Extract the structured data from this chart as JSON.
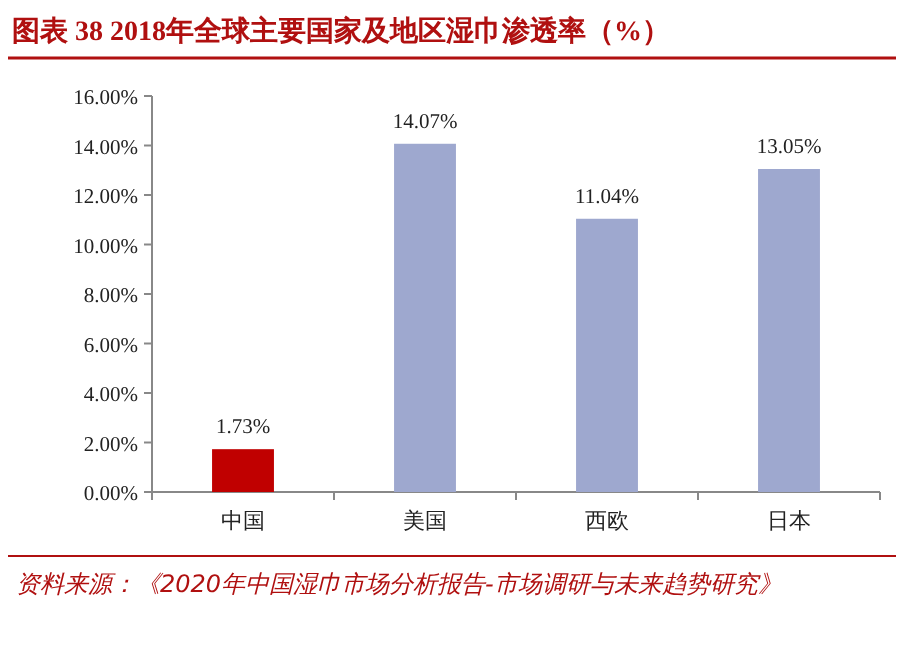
{
  "chart_data": {
    "type": "bar",
    "title": "图表 38   2018年全球主要国家及地区湿巾渗透率（%）",
    "categories": [
      "中国",
      "美国",
      "西欧",
      "日本"
    ],
    "values": [
      1.73,
      14.07,
      11.04,
      13.05
    ],
    "colors": [
      "#c00000",
      "#9ea8cf",
      "#9ea8cf",
      "#9ea8cf"
    ],
    "value_labels": [
      "1.73%",
      "14.07%",
      "11.04%",
      "13.05%"
    ],
    "ylim": [
      0,
      16
    ],
    "yticks": [
      {
        "value": 0,
        "label": "0.00%"
      },
      {
        "value": 2,
        "label": "2.00%"
      },
      {
        "value": 4,
        "label": "4.00%"
      },
      {
        "value": 6,
        "label": "6.00%"
      },
      {
        "value": 8,
        "label": "8.00%"
      },
      {
        "value": 10,
        "label": "10.00%"
      },
      {
        "value": 12,
        "label": "12.00%"
      },
      {
        "value": 14,
        "label": "14.00%"
      },
      {
        "value": 16,
        "label": "16.00%"
      }
    ],
    "annotations": [
      "资料来源：《2020年中国湿巾市场分析报告-市场调研与未来趋势研究》"
    ]
  }
}
